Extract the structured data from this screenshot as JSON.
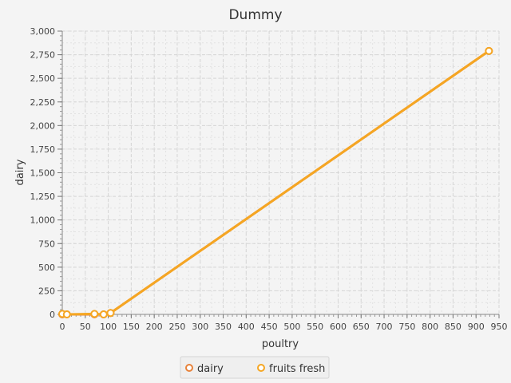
{
  "chart_data": {
    "type": "line",
    "title": "Dummy",
    "xlabel": "poultry",
    "ylabel": "dairy",
    "xlim": [
      0,
      950
    ],
    "ylim": [
      0,
      3000
    ],
    "x_ticks": [
      0,
      50,
      100,
      150,
      200,
      250,
      300,
      350,
      400,
      450,
      500,
      550,
      600,
      650,
      700,
      750,
      800,
      850,
      900,
      950
    ],
    "y_ticks": [
      0,
      250,
      500,
      750,
      1000,
      1250,
      1500,
      1750,
      2000,
      2250,
      2500,
      2750,
      3000
    ],
    "x_tick_labels": [
      "0",
      "50",
      "100",
      "150",
      "200",
      "250",
      "300",
      "350",
      "400",
      "450",
      "500",
      "550",
      "600",
      "650",
      "700",
      "750",
      "800",
      "850",
      "900",
      "950"
    ],
    "y_tick_labels": [
      "0",
      "250",
      "500",
      "750",
      "1,000",
      "1,250",
      "1,500",
      "1,750",
      "2,000",
      "2,250",
      "2,500",
      "2,750",
      "3,000"
    ],
    "grid": true,
    "legend_position": "bottom",
    "series": [
      {
        "name": "dairy",
        "color": "#e8823a",
        "points": [
          [
            0,
            0
          ],
          [
            10,
            0
          ],
          [
            70,
            0
          ],
          [
            90,
            0
          ],
          [
            105,
            15
          ],
          [
            928,
            2790
          ]
        ]
      },
      {
        "name": "fruits fresh",
        "color": "#f5a623",
        "points": [
          [
            0,
            5
          ],
          [
            10,
            0
          ],
          [
            70,
            5
          ],
          [
            90,
            0
          ],
          [
            105,
            15
          ],
          [
            928,
            2790
          ]
        ]
      }
    ]
  }
}
